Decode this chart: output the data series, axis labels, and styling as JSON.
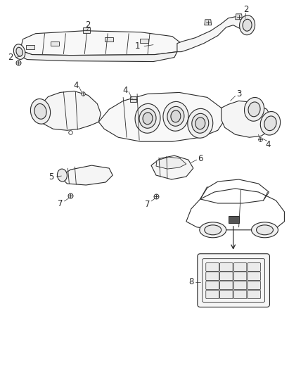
{
  "background_color": "#ffffff",
  "line_color": "#2a2a2a",
  "label_color": "#2a2a2a",
  "fig_width": 4.38,
  "fig_height": 5.33,
  "dpi": 100
}
